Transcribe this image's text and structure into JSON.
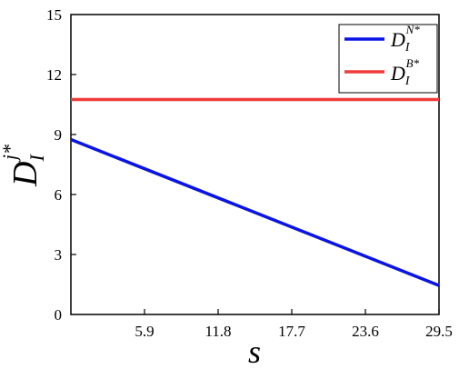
{
  "chart_data": {
    "type": "line",
    "xlabel": "s",
    "ylabel": {
      "base": "D",
      "sub": "I",
      "sup": "j*"
    },
    "xlim": [
      0,
      29.5
    ],
    "ylim": [
      0,
      15
    ],
    "xticks": [
      5.9,
      11.8,
      17.7,
      23.6,
      29.5
    ],
    "xtick_labels": [
      "5.9",
      "11.8",
      "17.7",
      "23.6",
      "29.5"
    ],
    "yticks": [
      0,
      3,
      6,
      9,
      12,
      15
    ],
    "ytick_labels": [
      "0",
      "3",
      "6",
      "9",
      "12",
      "15"
    ],
    "grid": false,
    "legend_position": "top-right",
    "series": [
      {
        "key": "DN",
        "name": {
          "base": "D",
          "sub": "I",
          "sup": "N*"
        },
        "color": "#0a14e6",
        "x": [
          0,
          29.5
        ],
        "y": [
          8.75,
          1.45
        ]
      },
      {
        "key": "DB",
        "name": {
          "base": "D",
          "sub": "I",
          "sup": "B*"
        },
        "color": "#f03c3c",
        "x": [
          0,
          29.5
        ],
        "y": [
          10.75,
          10.75
        ]
      }
    ]
  }
}
